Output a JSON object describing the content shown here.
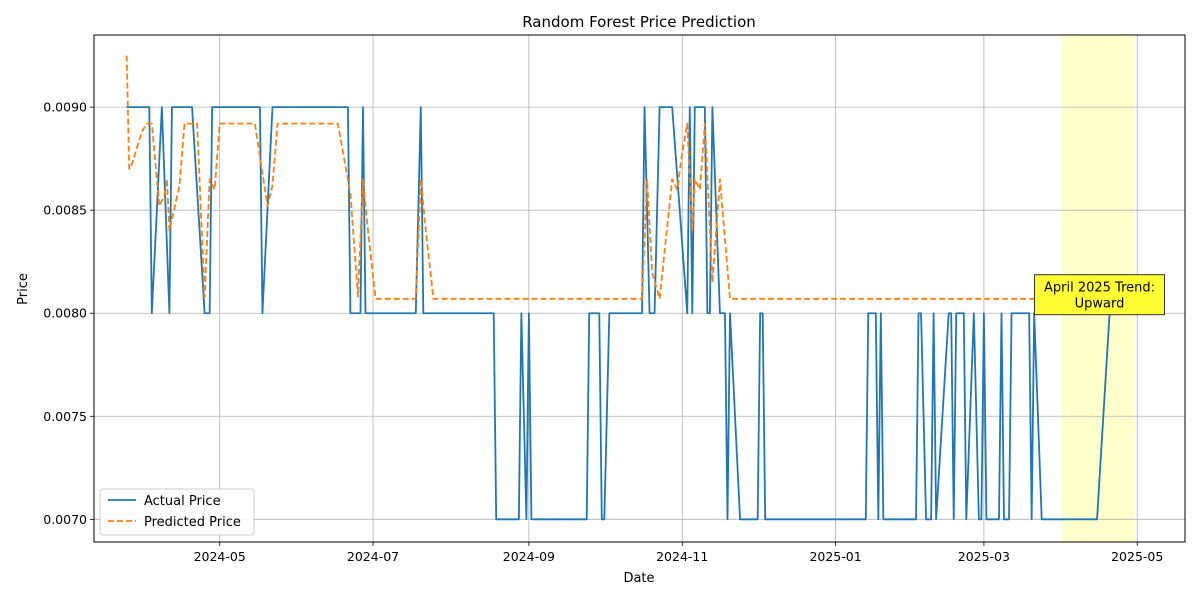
{
  "chart_data": {
    "type": "line",
    "title": "Random Forest Price Prediction",
    "xlabel": "Date",
    "ylabel": "Price",
    "xlim": [
      "2024-03-12",
      "2025-05-20"
    ],
    "ylim": [
      0.00689,
      0.00935
    ],
    "x_ticks": [
      "2024-05-01",
      "2024-07-01",
      "2024-09-01",
      "2024-11-01",
      "2025-01-01",
      "2025-03-01",
      "2025-05-01"
    ],
    "x_tick_labels": [
      "2024-05",
      "2024-07",
      "2024-09",
      "2024-11",
      "2025-01",
      "2025-03",
      "2025-05"
    ],
    "y_ticks": [
      0.007,
      0.0075,
      0.008,
      0.0085,
      0.009
    ],
    "y_tick_labels": [
      "0.0070",
      "0.0075",
      "0.0080",
      "0.0085",
      "0.0090"
    ],
    "grid": true,
    "legend_position": "lower-left",
    "highlight_span": {
      "x0": "2025-04-01",
      "x1": "2025-04-30",
      "color": "#ffffcc"
    },
    "annotation": {
      "lines": [
        "April 2025 Trend:",
        "Upward"
      ],
      "x": "2025-04-16",
      "y": 0.00809,
      "background": "#ffff33"
    },
    "series": [
      {
        "name": "Actual Price",
        "color": "#1f77b4",
        "style": "solid",
        "points": [
          [
            "2024-03-25",
            0.009
          ],
          [
            "2024-04-03",
            0.009
          ],
          [
            "2024-04-04",
            0.008
          ],
          [
            "2024-04-08",
            0.009
          ],
          [
            "2024-04-11",
            0.008
          ],
          [
            "2024-04-12",
            0.009
          ],
          [
            "2024-04-20",
            0.009
          ],
          [
            "2024-04-25",
            0.008
          ],
          [
            "2024-04-27",
            0.008
          ],
          [
            "2024-04-28",
            0.009
          ],
          [
            "2024-05-17",
            0.009
          ],
          [
            "2024-05-18",
            0.008
          ],
          [
            "2024-05-22",
            0.009
          ],
          [
            "2024-06-21",
            0.009
          ],
          [
            "2024-06-22",
            0.008
          ],
          [
            "2024-06-26",
            0.008
          ],
          [
            "2024-06-27",
            0.009
          ],
          [
            "2024-06-28",
            0.008
          ],
          [
            "2024-07-18",
            0.008
          ],
          [
            "2024-07-20",
            0.009
          ],
          [
            "2024-07-21",
            0.008
          ],
          [
            "2024-08-18",
            0.008
          ],
          [
            "2024-08-19",
            0.007
          ],
          [
            "2024-08-28",
            0.007
          ],
          [
            "2024-08-29",
            0.008
          ],
          [
            "2024-08-31",
            0.007
          ],
          [
            "2024-09-01",
            0.008
          ],
          [
            "2024-09-02",
            0.007
          ],
          [
            "2024-09-24",
            0.007
          ],
          [
            "2024-09-25",
            0.008
          ],
          [
            "2024-09-29",
            0.008
          ],
          [
            "2024-09-30",
            0.007
          ],
          [
            "2024-10-01",
            0.007
          ],
          [
            "2024-10-03",
            0.008
          ],
          [
            "2024-10-16",
            0.008
          ],
          [
            "2024-10-17",
            0.009
          ],
          [
            "2024-10-19",
            0.008
          ],
          [
            "2024-10-21",
            0.008
          ],
          [
            "2024-10-23",
            0.009
          ],
          [
            "2024-10-28",
            0.009
          ],
          [
            "2024-11-03",
            0.008
          ],
          [
            "2024-11-04",
            0.009
          ],
          [
            "2024-11-05",
            0.008
          ],
          [
            "2024-11-06",
            0.009
          ],
          [
            "2024-11-10",
            0.009
          ],
          [
            "2024-11-11",
            0.008
          ],
          [
            "2024-11-12",
            0.008
          ],
          [
            "2024-11-13",
            0.009
          ],
          [
            "2024-11-16",
            0.008
          ],
          [
            "2024-11-18",
            0.008
          ],
          [
            "2024-11-19",
            0.007
          ],
          [
            "2024-11-20",
            0.008
          ],
          [
            "2024-11-24",
            0.007
          ],
          [
            "2024-12-01",
            0.007
          ],
          [
            "2024-12-02",
            0.008
          ],
          [
            "2024-12-03",
            0.008
          ],
          [
            "2024-12-04",
            0.007
          ],
          [
            "2025-01-13",
            0.007
          ],
          [
            "2025-01-14",
            0.008
          ],
          [
            "2025-01-17",
            0.008
          ],
          [
            "2025-01-18",
            0.007
          ],
          [
            "2025-01-19",
            0.008
          ],
          [
            "2025-01-20",
            0.007
          ],
          [
            "2025-02-02",
            0.007
          ],
          [
            "2025-02-03",
            0.008
          ],
          [
            "2025-02-04",
            0.008
          ],
          [
            "2025-02-06",
            0.007
          ],
          [
            "2025-02-08",
            0.007
          ],
          [
            "2025-02-09",
            0.008
          ],
          [
            "2025-02-10",
            0.007
          ],
          [
            "2025-02-15",
            0.008
          ],
          [
            "2025-02-16",
            0.008
          ],
          [
            "2025-02-17",
            0.007
          ],
          [
            "2025-02-18",
            0.008
          ],
          [
            "2025-02-21",
            0.008
          ],
          [
            "2025-02-22",
            0.007
          ],
          [
            "2025-02-25",
            0.008
          ],
          [
            "2025-02-27",
            0.007
          ],
          [
            "2025-02-28",
            0.007
          ],
          [
            "2025-03-01",
            0.008
          ],
          [
            "2025-03-02",
            0.007
          ],
          [
            "2025-03-07",
            0.007
          ],
          [
            "2025-03-08",
            0.008
          ],
          [
            "2025-03-09",
            0.007
          ],
          [
            "2025-03-11",
            0.007
          ],
          [
            "2025-03-12",
            0.008
          ],
          [
            "2025-03-19",
            0.008
          ],
          [
            "2025-03-20",
            0.007
          ],
          [
            "2025-03-21",
            0.008
          ],
          [
            "2025-03-24",
            0.007
          ],
          [
            "2025-04-01",
            0.007
          ],
          [
            "2025-04-15",
            0.007
          ],
          [
            "2025-04-20",
            0.008
          ]
        ]
      },
      {
        "name": "Predicted Price",
        "color": "#ff7f0e",
        "style": "dashed",
        "points": [
          [
            "2024-03-25",
            0.00925
          ],
          [
            "2024-03-26",
            0.0087
          ],
          [
            "2024-03-27",
            0.00872
          ],
          [
            "2024-03-31",
            0.00888
          ],
          [
            "2024-04-02",
            0.00892
          ],
          [
            "2024-04-04",
            0.00892
          ],
          [
            "2024-04-07",
            0.00852
          ],
          [
            "2024-04-09",
            0.00857
          ],
          [
            "2024-04-10",
            0.00865
          ],
          [
            "2024-04-11",
            0.0084
          ],
          [
            "2024-04-15",
            0.00862
          ],
          [
            "2024-04-17",
            0.00892
          ],
          [
            "2024-04-22",
            0.00892
          ],
          [
            "2024-04-25",
            0.00808
          ],
          [
            "2024-04-27",
            0.00865
          ],
          [
            "2024-04-29",
            0.0086
          ],
          [
            "2024-05-01",
            0.00892
          ],
          [
            "2024-05-15",
            0.00892
          ],
          [
            "2024-05-20",
            0.00852
          ],
          [
            "2024-05-22",
            0.00862
          ],
          [
            "2024-05-24",
            0.00892
          ],
          [
            "2024-06-17",
            0.00892
          ],
          [
            "2024-06-22",
            0.00858
          ],
          [
            "2024-06-25",
            0.00808
          ],
          [
            "2024-06-27",
            0.00865
          ],
          [
            "2024-06-29",
            0.0084
          ],
          [
            "2024-07-02",
            0.00807
          ],
          [
            "2024-07-18",
            0.00807
          ],
          [
            "2024-07-20",
            0.00865
          ],
          [
            "2024-07-22",
            0.0084
          ],
          [
            "2024-07-25",
            0.00807
          ],
          [
            "2024-10-16",
            0.00807
          ],
          [
            "2024-10-18",
            0.00865
          ],
          [
            "2024-10-20",
            0.0082
          ],
          [
            "2024-10-23",
            0.00807
          ],
          [
            "2024-10-28",
            0.00865
          ],
          [
            "2024-10-30",
            0.0086
          ],
          [
            "2024-11-01",
            0.00878
          ],
          [
            "2024-11-03",
            0.00892
          ],
          [
            "2024-11-05",
            0.0084
          ],
          [
            "2024-11-06",
            0.00865
          ],
          [
            "2024-11-08",
            0.0086
          ],
          [
            "2024-11-10",
            0.00892
          ],
          [
            "2024-11-13",
            0.00815
          ],
          [
            "2024-11-16",
            0.00865
          ],
          [
            "2024-11-20",
            0.00807
          ],
          [
            "2025-05-01",
            0.00807
          ]
        ]
      }
    ]
  }
}
